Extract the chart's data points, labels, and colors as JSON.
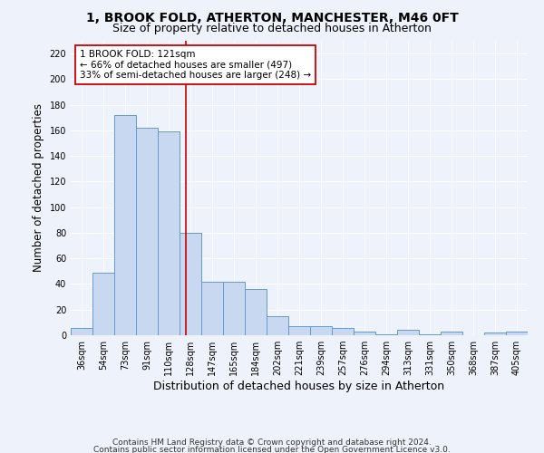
{
  "title": "1, BROOK FOLD, ATHERTON, MANCHESTER, M46 0FT",
  "subtitle": "Size of property relative to detached houses in Atherton",
  "xlabel": "Distribution of detached houses by size in Atherton",
  "ylabel": "Number of detached properties",
  "bin_labels": [
    "36sqm",
    "54sqm",
    "73sqm",
    "91sqm",
    "110sqm",
    "128sqm",
    "147sqm",
    "165sqm",
    "184sqm",
    "202sqm",
    "221sqm",
    "239sqm",
    "257sqm",
    "276sqm",
    "294sqm",
    "313sqm",
    "331sqm",
    "350sqm",
    "368sqm",
    "387sqm",
    "405sqm"
  ],
  "bar_values": [
    6,
    49,
    172,
    162,
    159,
    80,
    42,
    42,
    36,
    15,
    7,
    7,
    6,
    3,
    1,
    4,
    1,
    3,
    0,
    2,
    3
  ],
  "bar_color": "#c8d8f0",
  "bar_edge_color": "#6699cc",
  "vline_x": 4.78,
  "vline_color": "#cc0000",
  "ylim": [
    0,
    230
  ],
  "yticks": [
    0,
    20,
    40,
    60,
    80,
    100,
    120,
    140,
    160,
    180,
    200,
    220
  ],
  "annotation_title": "1 BROOK FOLD: 121sqm",
  "annotation_line1": "← 66% of detached houses are smaller (497)",
  "annotation_line2": "33% of semi-detached houses are larger (248) →",
  "annotation_box_color": "#ffffff",
  "annotation_box_edge": "#cc0000",
  "footer_line1": "Contains HM Land Registry data © Crown copyright and database right 2024.",
  "footer_line2": "Contains public sector information licensed under the Open Government Licence v3.0.",
  "bg_color": "#eef2fb",
  "grid_color": "#ffffff",
  "title_fontsize": 10,
  "subtitle_fontsize": 9,
  "ylabel_fontsize": 8.5,
  "xlabel_fontsize": 9,
  "tick_fontsize": 7,
  "annot_fontsize": 7.5,
  "footer_fontsize": 6.5
}
